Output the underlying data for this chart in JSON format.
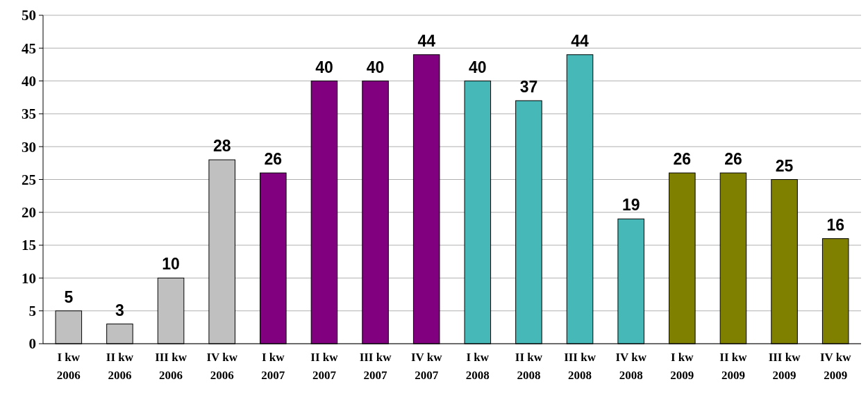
{
  "chart_data": {
    "type": "bar",
    "categories": [
      "I kw 2006",
      "II kw 2006",
      "III kw 2006",
      "IV kw 2006",
      "I kw 2007",
      "II kw 2007",
      "III kw 2007",
      "IV kw 2007",
      "I kw 2008",
      "II kw 2008",
      "III kw 2008",
      "IV kw 2008",
      "I kw 2009",
      "II kw 2009",
      "III kw 2009",
      "IV kw 2009"
    ],
    "values": [
      5,
      3,
      10,
      28,
      26,
      40,
      40,
      44,
      40,
      37,
      44,
      19,
      26,
      26,
      25,
      16
    ],
    "colors": [
      "#c0c0c0",
      "#c0c0c0",
      "#c0c0c0",
      "#c0c0c0",
      "#800080",
      "#800080",
      "#800080",
      "#800080",
      "#47b8b8",
      "#47b8b8",
      "#47b8b8",
      "#47b8b8",
      "#808000",
      "#808000",
      "#808000",
      "#808000"
    ],
    "ylim": [
      0,
      50
    ],
    "yticks": [
      0,
      5,
      10,
      15,
      20,
      25,
      30,
      35,
      40,
      45,
      50
    ],
    "grid": "y",
    "data_labels": true
  }
}
